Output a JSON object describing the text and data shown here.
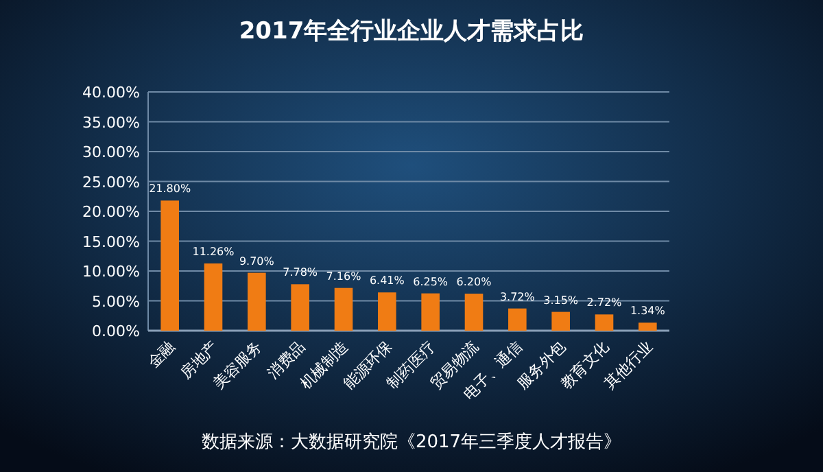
{
  "chart_data": {
    "type": "bar",
    "title": "2017年全行业企业人才需求占比",
    "categories": [
      "金融",
      "房地产",
      "美容服务",
      "消费品",
      "机械制造",
      "能源环保",
      "制药医疗",
      "贸易物流",
      "电子、通信",
      "服务外包",
      "教育文化",
      "其他行业"
    ],
    "values": [
      21.8,
      11.26,
      9.7,
      7.78,
      7.16,
      6.41,
      6.25,
      6.2,
      3.72,
      3.15,
      2.72,
      1.34
    ],
    "value_labels": [
      "21.80%",
      "11.26%",
      "9.70%",
      "7.78%",
      "7.16%",
      "6.41%",
      "6.25%",
      "6.20%",
      "3.72%",
      "3.15%",
      "2.72%",
      "1.34%"
    ],
    "color": "#f07c14",
    "ylim": [
      0,
      40
    ],
    "yticks": [
      {
        "value": 0,
        "label": "0.00%"
      },
      {
        "value": 5,
        "label": "5.00%"
      },
      {
        "value": 10,
        "label": "10.00%"
      },
      {
        "value": 15,
        "label": "15.00%"
      },
      {
        "value": 20,
        "label": "20.00%"
      },
      {
        "value": 25,
        "label": "25.00%"
      },
      {
        "value": 30,
        "label": "30.00%"
      },
      {
        "value": 35,
        "label": "35.00%"
      },
      {
        "value": 40,
        "label": "40.00%"
      }
    ],
    "grid": "y",
    "annotations": [
      "数据来源：大数据研究院《2017年三季度人才报告》"
    ]
  }
}
